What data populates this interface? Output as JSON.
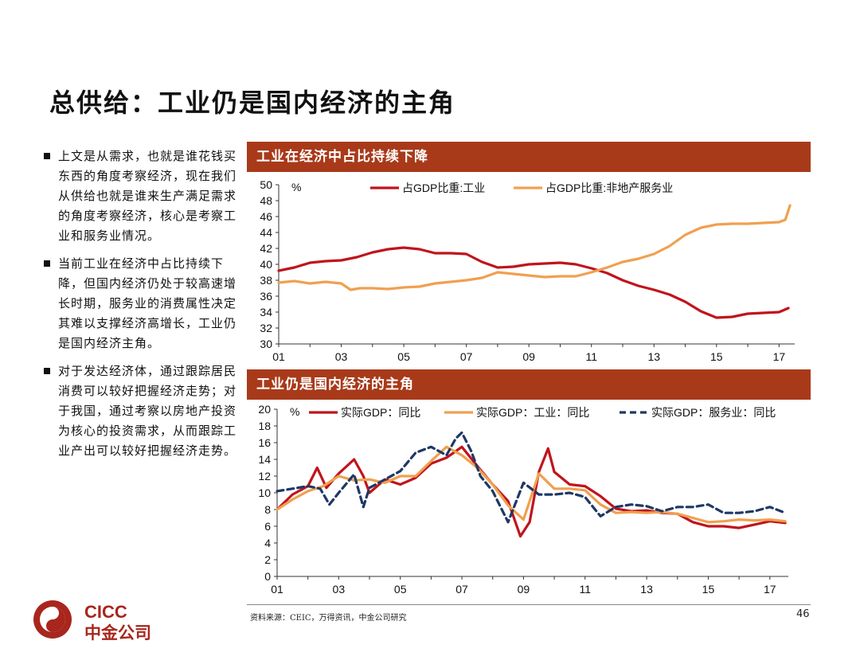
{
  "page_title": "总供给：工业仍是国内经济的主角",
  "bullets": [
    "上文是从需求，也就是谁花钱买东西的角度考察经济，现在我们从供给也就是谁来生产满足需求的角度考察经济，核心是考察工业和服务业情况。",
    "当前工业在经济中占比持续下降，但国内经济仍处于较高速增长时期，服务业的消费属性决定其难以支撑经济高增长，工业仍是国内经济主角。",
    "对于发达经济体，通过跟踪居民消费可以较好把握经济走势；对于我国，通过考察以房地产投资为核心的投资需求，从而跟踪工业产出可以较好把握经济走势。"
  ],
  "source": "资料来源：CEIC，万得资讯，中金公司研究",
  "page_number": "46",
  "logo": {
    "text_en": "CICC",
    "text_cn": "中金公司",
    "color": "#a8261d"
  },
  "colors": {
    "header": "#a83a1a",
    "red": "#c0141c",
    "orange": "#f0a050",
    "navy": "#1f3864"
  },
  "chart_data": [
    {
      "type": "line",
      "title": "工业在经济中占比持续下降",
      "ylabel": "%",
      "ylim": [
        30,
        50
      ],
      "yticks": [
        30,
        32,
        34,
        36,
        38,
        40,
        42,
        44,
        46,
        48,
        50
      ],
      "xlim": [
        2001,
        2017.5
      ],
      "xticks": [
        "01",
        "03",
        "05",
        "07",
        "09",
        "11",
        "13",
        "15",
        "17"
      ],
      "legend": "top",
      "series": [
        {
          "name": "占GDP比重:工业",
          "color": "#c0141c",
          "dash": "",
          "x": [
            2001,
            2001.5,
            2002,
            2002.5,
            2003,
            2003.5,
            2004,
            2004.5,
            2005,
            2005.5,
            2006,
            2006.5,
            2007,
            2007.5,
            2008,
            2008.5,
            2009,
            2009.5,
            2010,
            2010.5,
            2011,
            2011.5,
            2012,
            2012.5,
            2013,
            2013.5,
            2014,
            2014.5,
            2015,
            2015.5,
            2016,
            2016.5,
            2017,
            2017.3
          ],
          "y": [
            39.2,
            39.6,
            40.2,
            40.4,
            40.5,
            40.9,
            41.5,
            41.9,
            42.1,
            41.9,
            41.4,
            41.4,
            41.3,
            40.3,
            39.6,
            39.7,
            40.0,
            40.1,
            40.2,
            40.0,
            39.5,
            38.9,
            38.0,
            37.3,
            36.8,
            36.2,
            35.3,
            34.1,
            33.3,
            33.4,
            33.8,
            33.9,
            34.0,
            34.5
          ]
        },
        {
          "name": "占GDP比重:非地产服务业",
          "color": "#f0a050",
          "dash": "",
          "x": [
            2001,
            2001.5,
            2002,
            2002.5,
            2003,
            2003.3,
            2003.6,
            2004,
            2004.5,
            2005,
            2005.5,
            2006,
            2006.5,
            2007,
            2007.5,
            2008,
            2008.5,
            2009,
            2009.5,
            2010,
            2010.5,
            2011,
            2011.5,
            2012,
            2012.5,
            2013,
            2013.5,
            2014,
            2014.5,
            2015,
            2015.5,
            2016,
            2016.5,
            2017,
            2017.2,
            2017.35
          ],
          "y": [
            37.7,
            37.9,
            37.6,
            37.8,
            37.6,
            36.8,
            37.0,
            37.0,
            36.9,
            37.1,
            37.2,
            37.6,
            37.8,
            38.0,
            38.3,
            39.0,
            38.8,
            38.6,
            38.4,
            38.5,
            38.5,
            39.0,
            39.6,
            40.3,
            40.7,
            41.3,
            42.3,
            43.7,
            44.6,
            45.0,
            45.1,
            45.1,
            45.2,
            45.3,
            45.6,
            47.4
          ]
        }
      ]
    },
    {
      "type": "line",
      "title": "工业仍是国内经济的主角",
      "ylabel": "%",
      "ylim": [
        0,
        20
      ],
      "yticks": [
        0,
        2,
        4,
        6,
        8,
        10,
        12,
        14,
        16,
        18,
        20
      ],
      "xlim": [
        2001,
        2017.6
      ],
      "xticks": [
        "01",
        "03",
        "05",
        "07",
        "09",
        "11",
        "13",
        "15",
        "17"
      ],
      "legend": "top",
      "series": [
        {
          "name": "实际GDP：同比",
          "color": "#c0141c",
          "dash": "",
          "x": [
            2001,
            2001.5,
            2002,
            2002.3,
            2002.6,
            2003,
            2003.5,
            2003.8,
            2004,
            2004.5,
            2005,
            2005.5,
            2006,
            2006.5,
            2007,
            2007.5,
            2008,
            2008.5,
            2008.9,
            2009.2,
            2009.5,
            2009.8,
            2010,
            2010.5,
            2011,
            2011.5,
            2012,
            2012.5,
            2013,
            2013.5,
            2014,
            2014.5,
            2015,
            2015.5,
            2016,
            2016.5,
            2017,
            2017.5
          ],
          "y": [
            8.0,
            9.8,
            10.8,
            13.0,
            10.6,
            12.3,
            14.0,
            12.0,
            10.0,
            11.6,
            11.0,
            11.8,
            13.5,
            14.2,
            15.5,
            13.2,
            11.0,
            9.0,
            4.8,
            6.5,
            12.5,
            15.3,
            12.5,
            11.0,
            10.8,
            9.6,
            8.1,
            7.8,
            7.9,
            7.6,
            7.5,
            6.5,
            6.0,
            6.0,
            5.8,
            6.2,
            6.6,
            6.4
          ]
        },
        {
          "name": "实际GDP：工业：同比",
          "color": "#f0a050",
          "dash": "",
          "x": [
            2001,
            2001.5,
            2002,
            2002.5,
            2003,
            2003.5,
            2004,
            2004.5,
            2005,
            2005.5,
            2006,
            2006.5,
            2007,
            2007.5,
            2008,
            2008.5,
            2009,
            2009.5,
            2010,
            2010.5,
            2011,
            2011.5,
            2012,
            2012.5,
            2013,
            2013.5,
            2014,
            2014.5,
            2015,
            2015.5,
            2016,
            2016.5,
            2017,
            2017.5
          ],
          "y": [
            8.0,
            9.2,
            10.2,
            10.8,
            12.0,
            11.5,
            11.6,
            11.2,
            12.0,
            12.0,
            13.8,
            15.5,
            14.5,
            13.0,
            11.0,
            8.5,
            6.8,
            12.3,
            10.5,
            10.5,
            10.3,
            8.6,
            7.6,
            7.7,
            7.6,
            7.7,
            7.5,
            7.0,
            6.5,
            6.6,
            6.8,
            6.7,
            6.8,
            6.6
          ]
        },
        {
          "name": "实际GDP：服务业：同比",
          "color": "#1f3864",
          "dash": "8,5",
          "x": [
            2001,
            2001.5,
            2002,
            2002.4,
            2002.7,
            2003,
            2003.5,
            2003.8,
            2004,
            2004.5,
            2005,
            2005.5,
            2006,
            2006.5,
            2006.8,
            2007,
            2007.3,
            2007.6,
            2008,
            2008.5,
            2009,
            2009.5,
            2010,
            2010.5,
            2011,
            2011.5,
            2012,
            2012.5,
            2013,
            2013.5,
            2014,
            2014.5,
            2015,
            2015.5,
            2016,
            2016.5,
            2017,
            2017.5
          ],
          "y": [
            10.2,
            10.5,
            10.8,
            10.5,
            8.6,
            10.0,
            12.2,
            8.3,
            10.6,
            11.6,
            12.6,
            14.8,
            15.5,
            14.5,
            16.5,
            17.2,
            15.0,
            12.0,
            10.2,
            6.5,
            11.2,
            9.8,
            9.8,
            10.0,
            9.5,
            7.2,
            8.3,
            8.6,
            8.4,
            7.8,
            8.3,
            8.3,
            8.6,
            7.6,
            7.6,
            7.8,
            8.3,
            7.6
          ]
        }
      ]
    }
  ]
}
